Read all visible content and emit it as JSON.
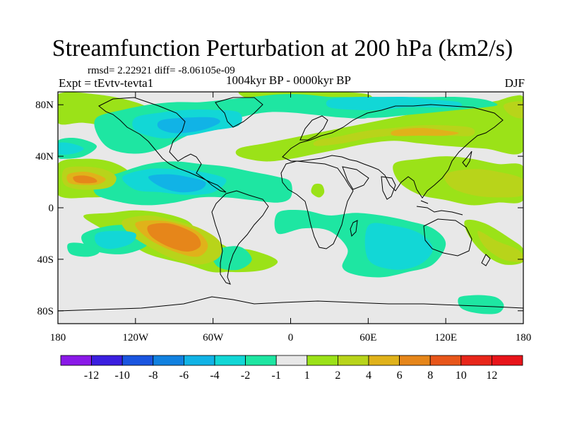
{
  "title": "Streamfunction Perturbation at 200 hPa (km2/s)",
  "stats": "rmsd= 2.22921 diff= -8.06105e-09",
  "left_label": "Expt = tEvtv-tevta1",
  "center_label": "1004kyr BP - 0000kyr BP",
  "right_label": "DJF",
  "map": {
    "lon_range": [
      -180,
      180
    ],
    "lat_range": [
      -90,
      90
    ],
    "lat_ticks": [
      {
        "value": 80,
        "label": "80N"
      },
      {
        "value": 40,
        "label": "40N"
      },
      {
        "value": 0,
        "label": "0"
      },
      {
        "value": -40,
        "label": "40S"
      },
      {
        "value": -80,
        "label": "80S"
      }
    ],
    "lon_ticks": [
      {
        "value": -180,
        "label": "180"
      },
      {
        "value": -120,
        "label": "120W"
      },
      {
        "value": -60,
        "label": "60W"
      },
      {
        "value": 0,
        "label": "0"
      },
      {
        "value": 60,
        "label": "60E"
      },
      {
        "value": 120,
        "label": "120E"
      },
      {
        "value": 180,
        "label": "180"
      }
    ],
    "background_color": "#e8e8e8",
    "fields": [
      {
        "name": "pos-nh-northwest",
        "level": 2,
        "lon": [
          -180,
          -150,
          -120,
          -100,
          -100,
          -130,
          -160,
          -180
        ],
        "lat": [
          88,
          88,
          82,
          72,
          64,
          62,
          66,
          66
        ]
      },
      {
        "name": "pos-arctic",
        "level": 2,
        "lon": [
          -40,
          -20,
          0,
          20,
          40,
          60,
          60,
          30,
          0,
          -30
        ],
        "lat": [
          90,
          90,
          90,
          90,
          90,
          88,
          84,
          82,
          82,
          84
        ]
      },
      {
        "name": "pos-eurasia-band",
        "level": 2,
        "lon": [
          -40,
          -20,
          0,
          20,
          40,
          60,
          80,
          100,
          120,
          150,
          180,
          180,
          150,
          120,
          100,
          80,
          60,
          40,
          20,
          0,
          -20,
          -40
        ],
        "lat": [
          46,
          50,
          54,
          58,
          62,
          66,
          70,
          74,
          76,
          80,
          85,
          44,
          46,
          48,
          50,
          52,
          50,
          46,
          42,
          38,
          36,
          40
        ]
      },
      {
        "name": "pos-eurasia-core",
        "level": 4,
        "lon": [
          20,
          40,
          60,
          80,
          100,
          120,
          140,
          140,
          120,
          100,
          80,
          60,
          40,
          20
        ],
        "lat": [
          52,
          56,
          60,
          62,
          64,
          64,
          62,
          56,
          56,
          56,
          56,
          54,
          50,
          48
        ]
      },
      {
        "name": "pos-eurasia-strong",
        "level": 6,
        "lon": [
          80,
          100,
          120,
          130,
          120,
          100,
          80
        ],
        "lat": [
          60,
          62,
          60,
          58,
          56,
          56,
          56
        ]
      },
      {
        "name": "pos-npac-east",
        "level": 2,
        "lon": [
          150,
          165,
          180,
          180,
          165,
          150
        ],
        "lat": [
          80,
          84,
          86,
          62,
          62,
          70
        ]
      },
      {
        "name": "pos-npac-east-core",
        "level": 4,
        "lon": [
          165,
          180,
          180,
          170
        ],
        "lat": [
          80,
          82,
          70,
          72
        ]
      },
      {
        "name": "pos-central-pac",
        "level": 2,
        "lon": [
          -180,
          -160,
          -140,
          -125,
          -120,
          -130,
          -155,
          -180
        ],
        "lat": [
          34,
          38,
          36,
          28,
          16,
          10,
          8,
          10
        ]
      },
      {
        "name": "pos-central-pac-4",
        "level": 4,
        "lon": [
          -175,
          -160,
          -145,
          -135,
          -140,
          -160,
          -175
        ],
        "lat": [
          30,
          32,
          30,
          24,
          16,
          14,
          18
        ]
      },
      {
        "name": "pos-central-pac-6",
        "level": 6,
        "lon": [
          -172,
          -160,
          -150,
          -143,
          -150,
          -165,
          -172
        ],
        "lat": [
          26,
          28,
          26,
          22,
          18,
          18,
          20
        ]
      },
      {
        "name": "pos-central-pac-8",
        "level": 8,
        "lon": [
          -168,
          -160,
          -152,
          -150,
          -158,
          -166
        ],
        "lat": [
          24,
          25,
          23,
          20,
          19,
          20
        ]
      },
      {
        "name": "pos-sam-band",
        "level": 2,
        "lon": [
          -160,
          -140,
          -120,
          -100,
          -80,
          -70,
          -50,
          -40,
          -45,
          -60,
          -80,
          -110,
          -130,
          -150
        ],
        "lat": [
          -6,
          -4,
          -2,
          -4,
          -10,
          -20,
          -30,
          -38,
          -48,
          -50,
          -44,
          -36,
          -24,
          -14
        ]
      },
      {
        "name": "pos-sam-4",
        "level": 4,
        "lon": [
          -130,
          -110,
          -90,
          -70,
          -55,
          -55,
          -70,
          -90,
          -110,
          -125
        ],
        "lat": [
          -10,
          -6,
          -10,
          -16,
          -26,
          -38,
          -44,
          -40,
          -30,
          -20
        ]
      },
      {
        "name": "pos-sam-6",
        "level": 6,
        "lon": [
          -120,
          -100,
          -82,
          -70,
          -64,
          -72,
          -90,
          -110
        ],
        "lat": [
          -12,
          -10,
          -14,
          -20,
          -30,
          -38,
          -34,
          -24
        ]
      },
      {
        "name": "pos-sam-8",
        "level": 8,
        "lon": [
          -110,
          -96,
          -82,
          -72,
          -70,
          -80,
          -95,
          -108
        ],
        "lat": [
          -14,
          -12,
          -16,
          -22,
          -30,
          -34,
          -30,
          -22
        ]
      },
      {
        "name": "pos-seasia",
        "level": 2,
        "lon": [
          80,
          100,
          120,
          140,
          160,
          180,
          180,
          160,
          140,
          120,
          100,
          84
        ],
        "lat": [
          34,
          38,
          40,
          38,
          34,
          32,
          6,
          4,
          2,
          6,
          10,
          20
        ]
      },
      {
        "name": "pos-seasia-4",
        "level": 4,
        "lon": [
          120,
          140,
          160,
          180,
          180,
          160,
          140,
          124
        ],
        "lat": [
          26,
          30,
          28,
          22,
          10,
          8,
          10,
          16
        ]
      },
      {
        "name": "pos-africa-small",
        "level": 2,
        "lon": [
          18,
          24,
          26,
          22,
          16
        ],
        "lat": [
          18,
          18,
          12,
          8,
          12
        ]
      },
      {
        "name": "pos-australia",
        "level": 2,
        "lon": [
          135,
          150,
          170,
          180,
          180,
          165,
          150,
          138
        ],
        "lat": [
          -10,
          -12,
          -24,
          -32,
          -42,
          -44,
          -36,
          -22
        ]
      },
      {
        "name": "pos-australia-4",
        "level": 4,
        "lon": [
          145,
          160,
          175,
          180,
          178,
          164,
          150
        ],
        "lat": [
          -18,
          -26,
          -32,
          -38,
          -42,
          -40,
          -30
        ]
      },
      {
        "name": "pos-south-atl",
        "level": 2,
        "lon": [
          -60,
          -40,
          -20,
          -10,
          -20,
          -40,
          -60
        ],
        "lat": [
          -40,
          -32,
          -36,
          -42,
          -48,
          -50,
          -48
        ]
      },
      {
        "name": "neg-na-band",
        "level": -2,
        "lon": [
          -150,
          -130,
          -110,
          -90,
          -70,
          -50,
          -30,
          -10,
          10,
          30,
          50,
          60,
          60,
          40,
          20,
          0,
          -20,
          -40,
          -60,
          -80,
          -100,
          -120,
          -140,
          -150
        ],
        "lat": [
          70,
          76,
          80,
          82,
          82,
          84,
          86,
          88,
          88,
          86,
          84,
          80,
          70,
          70,
          72,
          74,
          74,
          70,
          64,
          56,
          46,
          42,
          46,
          58
        ]
      },
      {
        "name": "neg-na-4",
        "level": -4,
        "lon": [
          -120,
          -100,
          -80,
          -60,
          -40,
          -40,
          -60,
          -80,
          -100,
          -120
        ],
        "lat": [
          70,
          74,
          76,
          76,
          74,
          64,
          60,
          56,
          54,
          60
        ]
      },
      {
        "name": "neg-na-6",
        "level": -6,
        "lon": [
          -100,
          -80,
          -60,
          -55,
          -70,
          -90,
          -102
        ],
        "lat": [
          68,
          70,
          70,
          66,
          60,
          58,
          62
        ]
      },
      {
        "name": "neg-eurasia-north",
        "level": -2,
        "lon": [
          -10,
          10,
          30,
          50,
          70,
          90,
          110,
          130,
          150,
          160,
          150,
          130,
          110,
          90,
          70,
          50,
          30,
          10,
          -10
        ],
        "lat": [
          84,
          86,
          86,
          86,
          86,
          86,
          86,
          86,
          84,
          80,
          78,
          76,
          74,
          72,
          70,
          70,
          72,
          76,
          80
        ]
      },
      {
        "name": "neg-eurasia-4",
        "level": -4,
        "lon": [
          30,
          50,
          70,
          90,
          110,
          130,
          130,
          110,
          90,
          70,
          50,
          30
        ],
        "lat": [
          84,
          86,
          86,
          86,
          84,
          82,
          78,
          78,
          78,
          76,
          76,
          78
        ]
      },
      {
        "name": "neg-npac-west",
        "level": -2,
        "lon": [
          -180,
          -165,
          -150,
          -160,
          -175,
          -180
        ],
        "lat": [
          52,
          54,
          48,
          40,
          38,
          40
        ]
      },
      {
        "name": "neg-npac-west-4",
        "level": -4,
        "lon": [
          -180,
          -170,
          -160,
          -168,
          -180
        ],
        "lat": [
          50,
          50,
          46,
          42,
          42
        ]
      },
      {
        "name": "neg-tropical-band",
        "level": -2,
        "lon": [
          -150,
          -130,
          -110,
          -90,
          -70,
          -50,
          -30,
          -10,
          0,
          0,
          -10,
          -30,
          -50,
          -70,
          -90,
          -110,
          -130,
          -150
        ],
        "lat": [
          20,
          28,
          34,
          36,
          34,
          32,
          28,
          24,
          20,
          8,
          4,
          6,
          8,
          8,
          4,
          2,
          4,
          10
        ]
      },
      {
        "name": "neg-tropical-4",
        "level": -4,
        "lon": [
          -130,
          -110,
          -90,
          -70,
          -50,
          -60,
          -80,
          -100,
          -120
        ],
        "lat": [
          24,
          30,
          30,
          28,
          22,
          12,
          10,
          12,
          14
        ]
      },
      {
        "name": "neg-tropical-6",
        "level": -6,
        "lon": [
          -110,
          -95,
          -80,
          -66,
          -70,
          -85,
          -100
        ],
        "lat": [
          24,
          26,
          24,
          20,
          14,
          12,
          16
        ]
      },
      {
        "name": "neg-sh-eastpac",
        "level": -2,
        "lon": [
          -160,
          -140,
          -120,
          -108,
          -112,
          -130,
          -150,
          -160
        ],
        "lat": [
          -20,
          -14,
          -14,
          -20,
          -30,
          -36,
          -34,
          -28
        ]
      },
      {
        "name": "neg-sh-eastpac-4",
        "level": -4,
        "lon": [
          -150,
          -135,
          -120,
          -124,
          -140,
          -150
        ],
        "lat": [
          -20,
          -18,
          -20,
          -28,
          -32,
          -28
        ]
      },
      {
        "name": "neg-indian-arc",
        "level": -2,
        "lon": [
          -10,
          10,
          30,
          50,
          70,
          90,
          110,
          120,
          110,
          90,
          70,
          50,
          40,
          44,
          30,
          10,
          -10
        ],
        "lat": [
          -4,
          -2,
          -6,
          -4,
          -6,
          -10,
          -16,
          -28,
          -44,
          -50,
          -54,
          -52,
          -46,
          -32,
          -18,
          -16,
          -20
        ]
      },
      {
        "name": "neg-indian-4",
        "level": -4,
        "lon": [
          60,
          80,
          100,
          110,
          100,
          80,
          60
        ],
        "lat": [
          -14,
          -14,
          -20,
          -32,
          -44,
          -48,
          -40
        ]
      },
      {
        "name": "neg-south-atl-west",
        "level": -2,
        "lon": [
          -60,
          -40,
          -30,
          -40,
          -56
        ],
        "lat": [
          -34,
          -30,
          -40,
          -48,
          -46
        ]
      },
      {
        "name": "neg-antarctic",
        "level": -2,
        "lon": [
          130,
          140,
          150,
          160,
          165,
          160,
          145,
          132
        ],
        "lat": [
          -70,
          -68,
          -68,
          -70,
          -76,
          -82,
          -82,
          -78
        ]
      },
      {
        "name": "neg-se-pac",
        "level": -2,
        "lon": [
          -172,
          -160,
          -148,
          -156,
          -170
        ],
        "lat": [
          -28,
          -28,
          -34,
          -38,
          -36
        ]
      }
    ]
  },
  "colorbar": {
    "labels": [
      "-12",
      "-10",
      "-8",
      "-6",
      "-4",
      "-2",
      "-1",
      "1",
      "2",
      "4",
      "6",
      "8",
      "10",
      "12"
    ],
    "colors": [
      "#8a19e8",
      "#3b1fe0",
      "#1a55e0",
      "#1181e0",
      "#11b3e6",
      "#12d7d6",
      "#1ee6a2",
      "#e8e8e8",
      "#9be218",
      "#b8d41a",
      "#e0b21a",
      "#e6861a",
      "#e8561a",
      "#e8261a",
      "#e8141a"
    ]
  }
}
